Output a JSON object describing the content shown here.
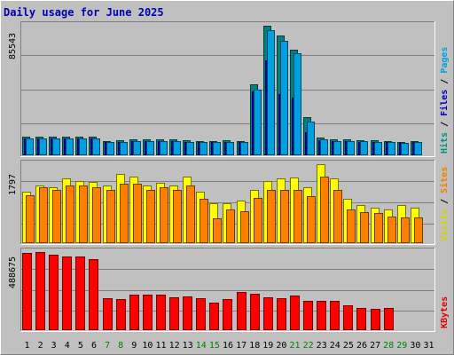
{
  "chart_data": {
    "type": "bar",
    "title": "Daily usage for June 2025",
    "days": [
      "1",
      "2",
      "3",
      "4",
      "5",
      "6",
      "7",
      "8",
      "9",
      "10",
      "11",
      "12",
      "13",
      "14",
      "15",
      "16",
      "17",
      "18",
      "19",
      "20",
      "21",
      "22",
      "23",
      "24",
      "25",
      "26",
      "27",
      "28",
      "29",
      "30",
      "31"
    ],
    "weekend_days": [
      "7",
      "8",
      "14",
      "15",
      "21",
      "22",
      "28",
      "29"
    ],
    "panels": [
      {
        "id": "top",
        "max_label": "85543",
        "ymax": 85543,
        "right_legend": [
          {
            "text": "Hits",
            "color": "#009080"
          },
          {
            "text": " / ",
            "color": "#000000"
          },
          {
            "text": "Files",
            "color": "#0000c0"
          },
          {
            "text": " / ",
            "color": "#000000"
          },
          {
            "text": "Pages",
            "color": "#00a0e0"
          }
        ],
        "series": [
          {
            "name": "Hits",
            "color": "#008080",
            "values": [
              12000,
              12000,
              12000,
              12000,
              12000,
              12000,
              9500,
              9800,
              10300,
              10300,
              10300,
              10300,
              9800,
              9500,
              9500,
              9800,
              9500,
              46500,
              85000,
              78500,
              69500,
              25000,
              11500,
              10500,
              10300,
              10000,
              9700,
              9500,
              9000,
              9500,
              0
            ]
          },
          {
            "name": "Files",
            "color": "#0000c0",
            "values": [
              11000,
              11000,
              11000,
              11000,
              11000,
              11000,
              8500,
              8500,
              9300,
              9300,
              9300,
              9300,
              8800,
              8500,
              8500,
              8800,
              8500,
              42000,
              62000,
              40000,
              38000,
              15000,
              10000,
              9300,
              9300,
              9000,
              8700,
              8500,
              8000,
              8500,
              0
            ]
          },
          {
            "name": "Pages",
            "color": "#00a0e0",
            "values": [
              11000,
              11000,
              11000,
              11000,
              11000,
              11000,
              8700,
              8700,
              9500,
              9500,
              9500,
              9500,
              9000,
              8700,
              8700,
              9000,
              8700,
              43000,
              82000,
              75000,
              67000,
              22000,
              10500,
              9500,
              9500,
              9300,
              9000,
              8700,
              8300,
              8700,
              0
            ]
          }
        ]
      },
      {
        "id": "mid",
        "max_label": "1797",
        "ymax": 1797,
        "right_legend": [
          {
            "text": "Visits",
            "color": "#d8d000"
          },
          {
            "text": " / ",
            "color": "#000000"
          },
          {
            "text": "Sites",
            "color": "#f08000"
          }
        ],
        "series": [
          {
            "name": "Visits",
            "color": "#ffff00",
            "values": [
              1150,
              1300,
              1250,
              1450,
              1400,
              1370,
              1300,
              1550,
              1500,
              1300,
              1350,
              1300,
              1500,
              1150,
              900,
              900,
              950,
              1200,
              1400,
              1450,
              1480,
              1250,
              1780,
              1450,
              1000,
              850,
              800,
              750,
              850,
              800,
              0
            ]
          },
          {
            "name": "Sites",
            "color": "#ff8000",
            "values": [
              1070,
              1250,
              1200,
              1300,
              1300,
              1250,
              1200,
              1330,
              1330,
              1200,
              1250,
              1200,
              1300,
              1000,
              560,
              760,
              720,
              1010,
              1190,
              1200,
              1200,
              1050,
              1490,
              1200,
              760,
              690,
              680,
              600,
              580,
              580,
              0
            ]
          }
        ]
      },
      {
        "id": "bot",
        "max_label": "488675",
        "ymax": 488675,
        "right_legend": [
          {
            "text": "KBytes",
            "color": "#e00000"
          }
        ],
        "series": [
          {
            "name": "KBytes",
            "color": "#ff0000",
            "values": [
              478000,
              485000,
              466000,
              458000,
              458000,
              437000,
              198000,
              190000,
              221000,
              222000,
              222000,
              204000,
              206000,
              198000,
              170000,
              190000,
              238000,
              227000,
              205000,
              198000,
              213000,
              182000,
              182000,
              182000,
              152000,
              137000,
              134000,
              140000,
              0,
              0,
              0
            ]
          }
        ]
      }
    ]
  }
}
